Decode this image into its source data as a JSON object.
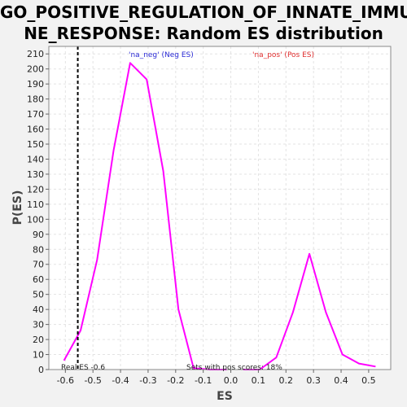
{
  "chart_data": {
    "type": "line",
    "title": "GO_POSITIVE_REGULATION_OF_INNATE_IMMU\nNE_RESPONSE: Random ES distribution",
    "xlabel": "ES",
    "ylabel": "P(ES)",
    "xlim": [
      -0.66,
      0.58
    ],
    "ylim": [
      0,
      215
    ],
    "x_ticks": [
      -0.6,
      -0.5,
      -0.4,
      -0.3,
      -0.2,
      -0.1,
      0.0,
      0.1,
      0.2,
      0.3,
      0.4,
      0.5
    ],
    "x_tick_labels": [
      "-0.6",
      "-0.5",
      "-0.4",
      "-0.3",
      "-0.2",
      "-0.1",
      "0.0",
      "0.1",
      "0.2",
      "0.3",
      "0.4",
      "0.5"
    ],
    "y_ticks": [
      0,
      10,
      20,
      30,
      40,
      50,
      60,
      70,
      80,
      90,
      100,
      110,
      120,
      130,
      140,
      150,
      160,
      170,
      180,
      190,
      200,
      210
    ],
    "grid": true,
    "series": [
      {
        "name": "'na_neg' (Neg ES)",
        "color": "#ff00ff",
        "x": [
          -0.605,
          -0.545,
          -0.485,
          -0.425,
          -0.365,
          -0.305,
          -0.245,
          -0.19,
          -0.135,
          -0.075,
          -0.015
        ],
        "y": [
          6,
          26,
          73,
          146,
          204,
          193,
          132,
          40,
          1,
          0,
          0
        ]
      },
      {
        "name": "'na_pos' (Pos ES)",
        "color": "#ff00ff",
        "x": [
          0.045,
          0.105,
          0.165,
          0.225,
          0.285,
          0.345,
          0.405,
          0.465,
          0.525
        ],
        "y": [
          0,
          0,
          8,
          38,
          77,
          38,
          10,
          4,
          2
        ]
      }
    ],
    "legend": [
      {
        "label": "'na_neg' (Neg ES)",
        "color": "#2b2bd6"
      },
      {
        "label": "'na_pos' (Pos ES)",
        "color": "#e03030"
      }
    ],
    "real_es": {
      "value": -0.555,
      "label": "Real ES -0.6"
    },
    "annotation": "Sets with pos scores: 18%"
  }
}
